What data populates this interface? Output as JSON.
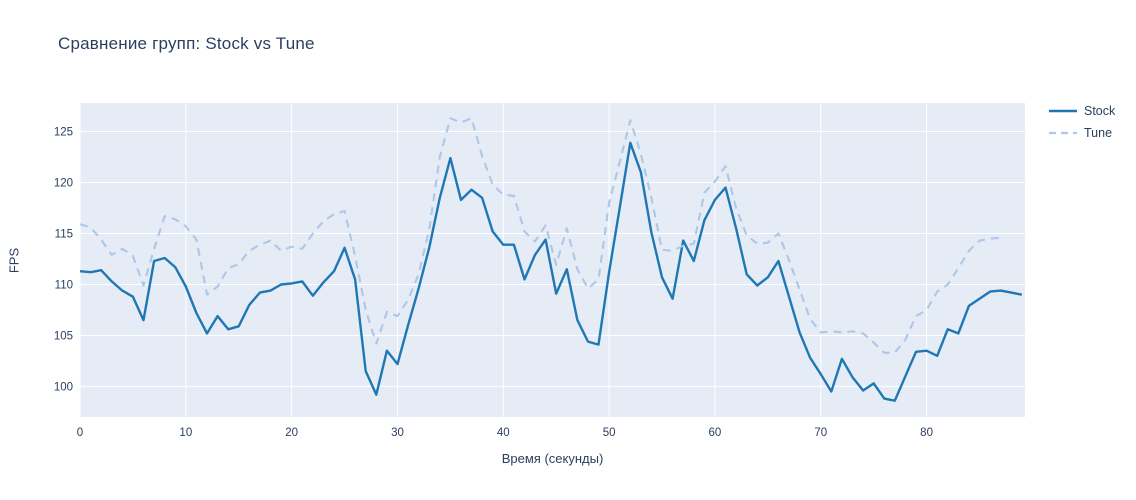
{
  "title": "Сравнение групп: Stock vs Tune",
  "colors": {
    "stock_line": "#1f77b4",
    "tune_line": "#aec7e8",
    "plot_background": "#e5ecf6",
    "gridline": "#ffffff",
    "text": "#2a3f5f"
  },
  "legend": {
    "items": [
      {
        "label": "Stock",
        "dash": "solid"
      },
      {
        "label": "Tune",
        "dash": "dash"
      }
    ]
  },
  "chart_data": {
    "type": "line",
    "title": "Сравнение групп: Stock vs Tune",
    "xlabel": "Время (секунды)",
    "ylabel": "FPS",
    "xlim": [
      0,
      89.3
    ],
    "ylim": [
      97,
      127.8
    ],
    "xticks": [
      0,
      10,
      20,
      30,
      40,
      50,
      60,
      70,
      80
    ],
    "yticks": [
      100,
      105,
      110,
      115,
      120,
      125
    ],
    "grid": true,
    "legend_position": "top-right-outside",
    "series": [
      {
        "name": "Stock",
        "dash": "solid",
        "color": "#1f77b4",
        "x_start": 0,
        "x_step": 1,
        "values": [
          111.3,
          111.2,
          111.4,
          110.3,
          109.4,
          108.8,
          106.5,
          112.3,
          112.6,
          111.7,
          109.8,
          107.2,
          105.2,
          106.9,
          105.6,
          105.9,
          108.0,
          109.2,
          109.4,
          110.0,
          110.1,
          110.3,
          108.9,
          110.2,
          111.3,
          113.6,
          110.5,
          101.5,
          99.2,
          103.5,
          102.2,
          106.0,
          109.6,
          113.6,
          118.5,
          122.4,
          118.3,
          119.3,
          118.5,
          115.2,
          113.9,
          113.9,
          110.5,
          112.9,
          114.4,
          109.1,
          111.5,
          106.5,
          104.4,
          104.1,
          111.2,
          117.5,
          123.9,
          121.0,
          115.1,
          110.7,
          108.6,
          114.3,
          112.3,
          116.3,
          118.3,
          119.5,
          115.5,
          111.0,
          109.9,
          110.7,
          112.3,
          108.8,
          105.3,
          102.8,
          101.2,
          99.5,
          102.7,
          100.9,
          99.6,
          100.3,
          98.8,
          98.6,
          101.0,
          103.4,
          103.5,
          103.0,
          105.6,
          105.2,
          107.9,
          108.6,
          109.3,
          109.4,
          109.2,
          109.0
        ]
      },
      {
        "name": "Tune",
        "dash": "dash",
        "color": "#aec7e8",
        "x_start": 0,
        "x_step": 1,
        "values": [
          115.9,
          115.6,
          114.4,
          112.9,
          113.5,
          112.8,
          109.9,
          113.5,
          116.7,
          116.4,
          115.7,
          114.4,
          109.0,
          109.8,
          111.6,
          112.0,
          113.3,
          113.9,
          114.3,
          113.3,
          113.7,
          113.5,
          115.0,
          116.2,
          116.9,
          117.2,
          112.8,
          107.5,
          104.2,
          107.3,
          106.9,
          108.5,
          111.0,
          115.4,
          122.5,
          126.3,
          125.9,
          126.3,
          122.6,
          119.8,
          118.8,
          118.7,
          115.2,
          114.2,
          115.8,
          111.9,
          115.5,
          111.5,
          109.6,
          110.5,
          118.0,
          122.0,
          126.1,
          122.8,
          118.5,
          113.4,
          113.3,
          113.8,
          114.0,
          119.0,
          120.1,
          121.6,
          117.5,
          114.8,
          114.0,
          114.1,
          115.0,
          112.4,
          109.5,
          106.6,
          105.3,
          105.4,
          105.3,
          105.4,
          105.2,
          104.3,
          103.3,
          103.3,
          104.6,
          106.9,
          107.5,
          109.3,
          110.0,
          111.6,
          113.3,
          114.3,
          114.5,
          114.6
        ]
      }
    ]
  }
}
